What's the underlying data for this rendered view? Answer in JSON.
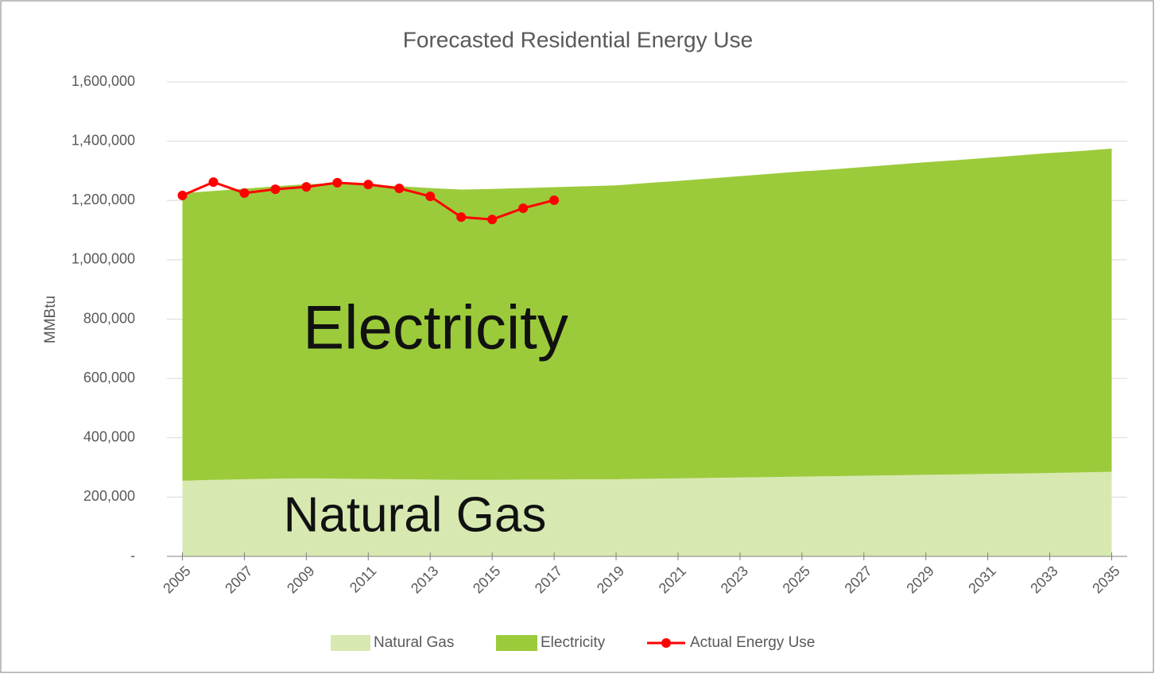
{
  "chart_data": {
    "type": "stacked-area-line",
    "title": "Forecasted Residential Energy Use",
    "y_label": "MMBtu",
    "annotations": [
      "Electricity",
      "Natural Gas"
    ],
    "x": [
      2005,
      2006,
      2007,
      2008,
      2009,
      2010,
      2011,
      2012,
      2013,
      2014,
      2015,
      2016,
      2017,
      2018,
      2019,
      2020,
      2021,
      2022,
      2023,
      2024,
      2025,
      2026,
      2027,
      2028,
      2029,
      2030,
      2031,
      2032,
      2033,
      2034,
      2035
    ],
    "xlim": [
      2004.5,
      2035.5
    ],
    "xticks": [
      2005,
      2007,
      2009,
      2011,
      2013,
      2015,
      2017,
      2019,
      2021,
      2023,
      2025,
      2027,
      2029,
      2031,
      2033,
      2035
    ],
    "ylim": [
      0,
      1600000
    ],
    "yticks": [
      {
        "value": 0,
        "label": "-"
      },
      {
        "value": 200000,
        "label": "200,000"
      },
      {
        "value": 400000,
        "label": "400,000"
      },
      {
        "value": 600000,
        "label": "600,000"
      },
      {
        "value": 800000,
        "label": "800,000"
      },
      {
        "value": 1000000,
        "label": "1,000,000"
      },
      {
        "value": 1200000,
        "label": "1,200,000"
      },
      {
        "value": 1400000,
        "label": "1,400,000"
      },
      {
        "value": 1600000,
        "label": "1,600,000"
      }
    ],
    "grid": true,
    "legend": "bottom",
    "series": [
      {
        "name": "Natural Gas",
        "color": "#d7e9b1",
        "kind": "area",
        "values": [
          255000,
          258000,
          260000,
          262000,
          263000,
          262000,
          261000,
          260000,
          259000,
          258000,
          258000,
          259000,
          259000,
          260000,
          260000,
          261500,
          263000,
          264500,
          266000,
          267500,
          269000,
          270500,
          272000,
          273500,
          275000,
          276500,
          278000,
          279500,
          281000,
          283000,
          285000
        ]
      },
      {
        "name": "Electricity",
        "color": "#9bcb3b",
        "kind": "area",
        "values": [
          970000,
          974000,
          980000,
          986000,
          992000,
          996000,
          994000,
          988000,
          983000,
          979000,
          981000,
          983000,
          986000,
          988000,
          991000,
          997500,
          1003000,
          1009500,
          1016000,
          1022500,
          1029000,
          1034500,
          1041000,
          1047500,
          1054000,
          1059500,
          1066000,
          1072500,
          1079000,
          1084000,
          1090000
        ]
      },
      {
        "name": "Actual Energy Use",
        "color": "#ff0000",
        "kind": "line",
        "values": [
          1217000,
          1262000,
          1225000,
          1238000,
          1246000,
          1260000,
          1254000,
          1241000,
          1214000,
          1144000,
          1136000,
          1174000,
          1201000,
          null,
          null,
          null,
          null,
          null,
          null,
          null,
          null,
          null,
          null,
          null,
          null,
          null,
          null,
          null,
          null,
          null,
          null
        ]
      }
    ]
  }
}
